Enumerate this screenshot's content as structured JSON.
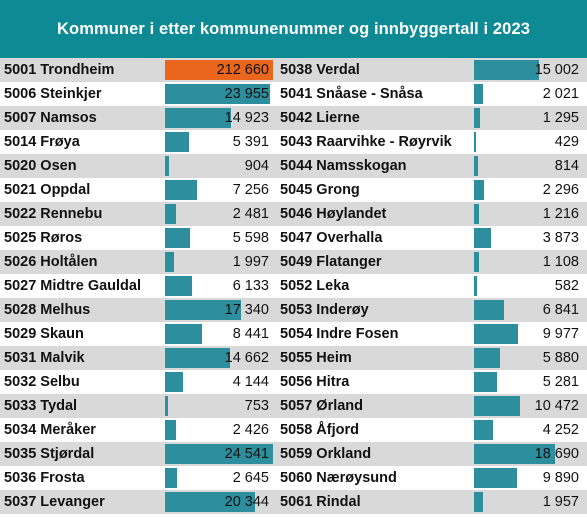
{
  "title": "Kommuner i etter kommunenummer og innbyggertall i 2023",
  "colors": {
    "header_bg": "#0e8a95",
    "bar": "#2d8f9e",
    "highlight_bar": "#e9661c",
    "row_shade": "#d9d9d9"
  },
  "chart_data": {
    "type": "bar",
    "title": "Kommuner i etter kommunenummer og innbyggertall i 2023",
    "orientation": "horizontal",
    "scale_max": 24541,
    "columns": [
      {
        "rows": [
          {
            "label": "5001 Trondheim",
            "value": 212660,
            "display": "212 660",
            "highlight": true
          },
          {
            "label": "5006 Steinkjer",
            "value": 23955,
            "display": "23 955"
          },
          {
            "label": "5007 Namsos",
            "value": 14923,
            "display": "14 923"
          },
          {
            "label": "5014 Frøya",
            "value": 5391,
            "display": "5 391"
          },
          {
            "label": "5020 Osen",
            "value": 904,
            "display": "904"
          },
          {
            "label": "5021 Oppdal",
            "value": 7256,
            "display": "7 256"
          },
          {
            "label": "5022 Rennebu",
            "value": 2481,
            "display": "2 481"
          },
          {
            "label": "5025 Røros",
            "value": 5598,
            "display": "5 598"
          },
          {
            "label": "5026 Holtålen",
            "value": 1997,
            "display": "1 997"
          },
          {
            "label": "5027 Midtre Gauldal",
            "value": 6133,
            "display": "6 133"
          },
          {
            "label": "5028 Melhus",
            "value": 17340,
            "display": "17 340"
          },
          {
            "label": "5029 Skaun",
            "value": 8441,
            "display": "8 441"
          },
          {
            "label": "5031 Malvik",
            "value": 14662,
            "display": "14 662"
          },
          {
            "label": "5032 Selbu",
            "value": 4144,
            "display": "4 144"
          },
          {
            "label": "5033 Tydal",
            "value": 753,
            "display": "753"
          },
          {
            "label": "5034 Meråker",
            "value": 2426,
            "display": "2 426"
          },
          {
            "label": "5035 Stjørdal",
            "value": 24541,
            "display": "24 541"
          },
          {
            "label": "5036 Frosta",
            "value": 2645,
            "display": "2 645"
          },
          {
            "label": "5037 Levanger",
            "value": 20344,
            "display": "20 344"
          }
        ]
      },
      {
        "rows": [
          {
            "label": "5038 Verdal",
            "value": 15002,
            "display": "15 002"
          },
          {
            "label": "5041 Snåase - Snåsa",
            "value": 2021,
            "display": "2 021"
          },
          {
            "label": "5042 Lierne",
            "value": 1295,
            "display": "1 295"
          },
          {
            "label": "5043 Raarvihke - Røyrvik",
            "value": 429,
            "display": "429"
          },
          {
            "label": "5044 Namsskogan",
            "value": 814,
            "display": "814"
          },
          {
            "label": "5045 Grong",
            "value": 2296,
            "display": "2 296"
          },
          {
            "label": "5046 Høylandet",
            "value": 1216,
            "display": "1 216"
          },
          {
            "label": "5047 Overhalla",
            "value": 3873,
            "display": "3 873"
          },
          {
            "label": "5049 Flatanger",
            "value": 1108,
            "display": "1 108"
          },
          {
            "label": "5052 Leka",
            "value": 582,
            "display": "582"
          },
          {
            "label": "5053 Inderøy",
            "value": 6841,
            "display": "6 841"
          },
          {
            "label": "5054 Indre Fosen",
            "value": 9977,
            "display": "9 977"
          },
          {
            "label": "5055 Heim",
            "value": 5880,
            "display": "5 880"
          },
          {
            "label": "5056 Hitra",
            "value": 5281,
            "display": "5 281"
          },
          {
            "label": "5057 Ørland",
            "value": 10472,
            "display": "10 472"
          },
          {
            "label": "5058 Åfjord",
            "value": 4252,
            "display": "4 252"
          },
          {
            "label": "5059 Orkland",
            "value": 18690,
            "display": "18 690"
          },
          {
            "label": "5060 Nærøysund",
            "value": 9890,
            "display": "9 890"
          },
          {
            "label": "5061 Rindal",
            "value": 1957,
            "display": "1 957"
          }
        ]
      }
    ]
  }
}
